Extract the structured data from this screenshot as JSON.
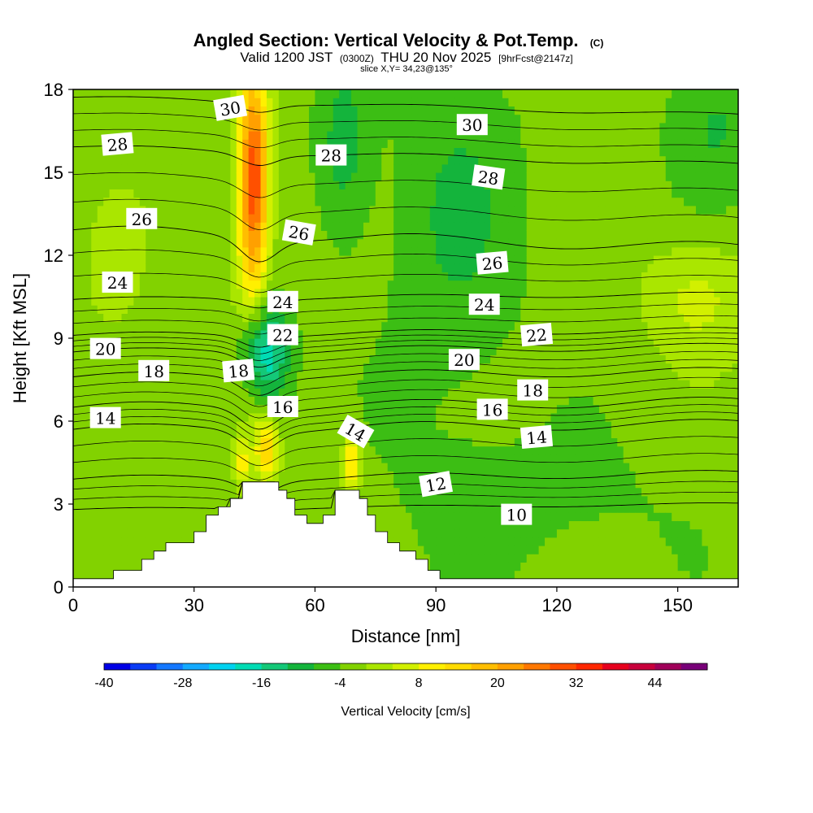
{
  "chart_data": {
    "type": "heatmap",
    "title": "Angled Section: Vertical Velocity & Pot.Temp.",
    "title_mark": "(C)",
    "subtitle_main": "Valid 1200 JST",
    "subtitle_z": "(0300Z)",
    "subtitle_date": "THU 20 Nov 2025",
    "subtitle_fcst": "[9hrFcst@2147z]",
    "slice": "slice X,Y= 34,23@135°",
    "xlabel": "Distance [nm]",
    "ylabel": "Height [Kft MSL]",
    "xlim": [
      0,
      165
    ],
    "ylim": [
      0,
      18
    ],
    "xticks": [
      {
        "value": 0,
        "label": "0"
      },
      {
        "value": 30,
        "label": "30"
      },
      {
        "value": 60,
        "label": "60"
      },
      {
        "value": 90,
        "label": "90"
      },
      {
        "value": 120,
        "label": "120"
      },
      {
        "value": 150,
        "label": "150"
      }
    ],
    "yticks": [
      {
        "value": 0,
        "label": "0"
      },
      {
        "value": 3,
        "label": "3"
      },
      {
        "value": 6,
        "label": "6"
      },
      {
        "value": 9,
        "label": "9"
      },
      {
        "value": 12,
        "label": "12"
      },
      {
        "value": 15,
        "label": "15"
      },
      {
        "value": 18,
        "label": "18"
      }
    ],
    "colorbar": {
      "label": "Vertical Velocity [cm/s]",
      "min": -40,
      "max": 52,
      "step": 4,
      "tick_labels": [
        {
          "value": -40,
          "label": "-40"
        },
        {
          "value": -28,
          "label": "-28"
        },
        {
          "value": -16,
          "label": "-16"
        },
        {
          "value": -4,
          "label": "-4"
        },
        {
          "value": 8,
          "label": "8"
        },
        {
          "value": 20,
          "label": "20"
        },
        {
          "value": 32,
          "label": "32"
        },
        {
          "value": 44,
          "label": "44"
        }
      ],
      "colors": [
        "#0000e6",
        "#0a3cf5",
        "#1478ff",
        "#14aaff",
        "#00d2f0",
        "#00dcb4",
        "#14c878",
        "#14b43c",
        "#3cbe14",
        "#82d200",
        "#aae600",
        "#d2f000",
        "#fff000",
        "#ffdc00",
        "#ffbe00",
        "#ffa000",
        "#ff7800",
        "#ff5000",
        "#ff2800",
        "#e6001e",
        "#c8003c",
        "#a0005a",
        "#780078"
      ]
    },
    "terrain_profile": [
      {
        "x": 0,
        "h": 0.3
      },
      {
        "x": 10,
        "h": 0.6
      },
      {
        "x": 17,
        "h": 1.0
      },
      {
        "x": 20,
        "h": 1.3
      },
      {
        "x": 23,
        "h": 1.6
      },
      {
        "x": 30,
        "h": 2.0
      },
      {
        "x": 33,
        "h": 2.6
      },
      {
        "x": 36,
        "h": 2.9
      },
      {
        "x": 39,
        "h": 3.2
      },
      {
        "x": 42,
        "h": 3.8
      },
      {
        "x": 51,
        "h": 3.5
      },
      {
        "x": 53,
        "h": 3.2
      },
      {
        "x": 55,
        "h": 2.6
      },
      {
        "x": 58,
        "h": 2.3
      },
      {
        "x": 62,
        "h": 2.6
      },
      {
        "x": 65,
        "h": 3.5
      },
      {
        "x": 71,
        "h": 3.2
      },
      {
        "x": 73,
        "h": 2.6
      },
      {
        "x": 75,
        "h": 2.0
      },
      {
        "x": 78,
        "h": 1.6
      },
      {
        "x": 81,
        "h": 1.3
      },
      {
        "x": 85,
        "h": 1.0
      },
      {
        "x": 88,
        "h": 0.6
      },
      {
        "x": 91,
        "h": 0.3
      },
      {
        "x": 165,
        "h": 0.3
      }
    ],
    "velocity_features": [
      {
        "x": 45,
        "h": 15.0,
        "sx": 2.5,
        "sh": 2.5,
        "w": 24
      },
      {
        "x": 44,
        "h": 13.0,
        "sx": 3.0,
        "sh": 4.0,
        "w": 12
      },
      {
        "x": 48,
        "h": 5.0,
        "sx": 2.0,
        "sh": 0.9,
        "w": 16
      },
      {
        "x": 69,
        "h": 4.5,
        "sx": 1.5,
        "sh": 0.8,
        "w": 16
      },
      {
        "x": 42,
        "h": 4.5,
        "sx": 1.2,
        "sh": 0.6,
        "w": 12
      },
      {
        "x": 47,
        "h": 8.5,
        "sx": 4.5,
        "sh": 1.3,
        "w": -20
      },
      {
        "x": 67,
        "h": 15.8,
        "sx": 5.0,
        "sh": 2.5,
        "w": -8
      },
      {
        "x": 95,
        "h": 13.0,
        "sx": 12.0,
        "sh": 5.0,
        "w": -6
      },
      {
        "x": 160,
        "h": 17.0,
        "sx": 9.0,
        "sh": 2.0,
        "w": -6
      },
      {
        "x": 155,
        "h": 10.5,
        "sx": 9.0,
        "sh": 1.5,
        "w": 7
      },
      {
        "x": 10,
        "h": 11.0,
        "sx": 6.0,
        "sh": 2.0,
        "w": 3
      },
      {
        "x": 115,
        "h": 3.0,
        "sx": 30.0,
        "sh": 2.0,
        "w": -3
      }
    ],
    "theta_contours": [
      {
        "value": 10,
        "label": "10",
        "h0": 2.9,
        "dip": 0.2
      },
      {
        "value": 12,
        "label": "12",
        "h0": 4.0,
        "dip": 0.5
      },
      {
        "value": 14,
        "label": "14",
        "h0": 5.8,
        "dip": 0.7
      },
      {
        "value": 16,
        "label": "16",
        "h0": 6.6,
        "dip": 0.7
      },
      {
        "value": 18,
        "label": "18",
        "h0": 7.7,
        "dip": 0.6
      },
      {
        "value": 20,
        "label": "20",
        "h0": 8.6,
        "dip": 0.5
      },
      {
        "value": 22,
        "label": "22",
        "h0": 9.2,
        "dip": 0.4
      },
      {
        "value": 24,
        "label": "24",
        "h0": 10.5,
        "dip": 0.3
      },
      {
        "value": 26,
        "label": "26",
        "h0": 12.6,
        "dip": 0.8
      },
      {
        "value": 28,
        "label": "28",
        "h0": 15.6,
        "dip": 0.4
      },
      {
        "value": 30,
        "label": "30",
        "h0": 17.4,
        "dip": 0.3
      }
    ],
    "contour_labels": [
      {
        "label": "30",
        "x": 39,
        "h": 17.3,
        "rot": -10
      },
      {
        "label": "28",
        "x": 11,
        "h": 16.0,
        "rot": -5
      },
      {
        "label": "28",
        "x": 64,
        "h": 15.6,
        "rot": 0
      },
      {
        "label": "30",
        "x": 99,
        "h": 16.7,
        "rot": 0
      },
      {
        "label": "28",
        "x": 103,
        "h": 14.8,
        "rot": 8
      },
      {
        "label": "26",
        "x": 17,
        "h": 13.3,
        "rot": 0
      },
      {
        "label": "26",
        "x": 56,
        "h": 12.8,
        "rot": 10
      },
      {
        "label": "26",
        "x": 104,
        "h": 11.7,
        "rot": -5
      },
      {
        "label": "24",
        "x": 11,
        "h": 11.0,
        "rot": 0
      },
      {
        "label": "24",
        "x": 52,
        "h": 10.3,
        "rot": 0
      },
      {
        "label": "24",
        "x": 102,
        "h": 10.2,
        "rot": 0
      },
      {
        "label": "22",
        "x": 52,
        "h": 9.1,
        "rot": 0
      },
      {
        "label": "22",
        "x": 115,
        "h": 9.1,
        "rot": -5
      },
      {
        "label": "20",
        "x": 8,
        "h": 8.6,
        "rot": 0
      },
      {
        "label": "20",
        "x": 97,
        "h": 8.2,
        "rot": 0
      },
      {
        "label": "18",
        "x": 20,
        "h": 7.8,
        "rot": 0
      },
      {
        "label": "18",
        "x": 41,
        "h": 7.8,
        "rot": -5
      },
      {
        "label": "18",
        "x": 114,
        "h": 7.1,
        "rot": 0
      },
      {
        "label": "16",
        "x": 52,
        "h": 6.5,
        "rot": 0
      },
      {
        "label": "16",
        "x": 104,
        "h": 6.4,
        "rot": 0
      },
      {
        "label": "14",
        "x": 8,
        "h": 6.1,
        "rot": 0
      },
      {
        "label": "14",
        "x": 70,
        "h": 5.6,
        "rot": 30
      },
      {
        "label": "14",
        "x": 115,
        "h": 5.4,
        "rot": -5
      },
      {
        "label": "12",
        "x": 90,
        "h": 3.7,
        "rot": -10
      },
      {
        "label": "10",
        "x": 110,
        "h": 2.6,
        "rot": 0
      }
    ]
  }
}
